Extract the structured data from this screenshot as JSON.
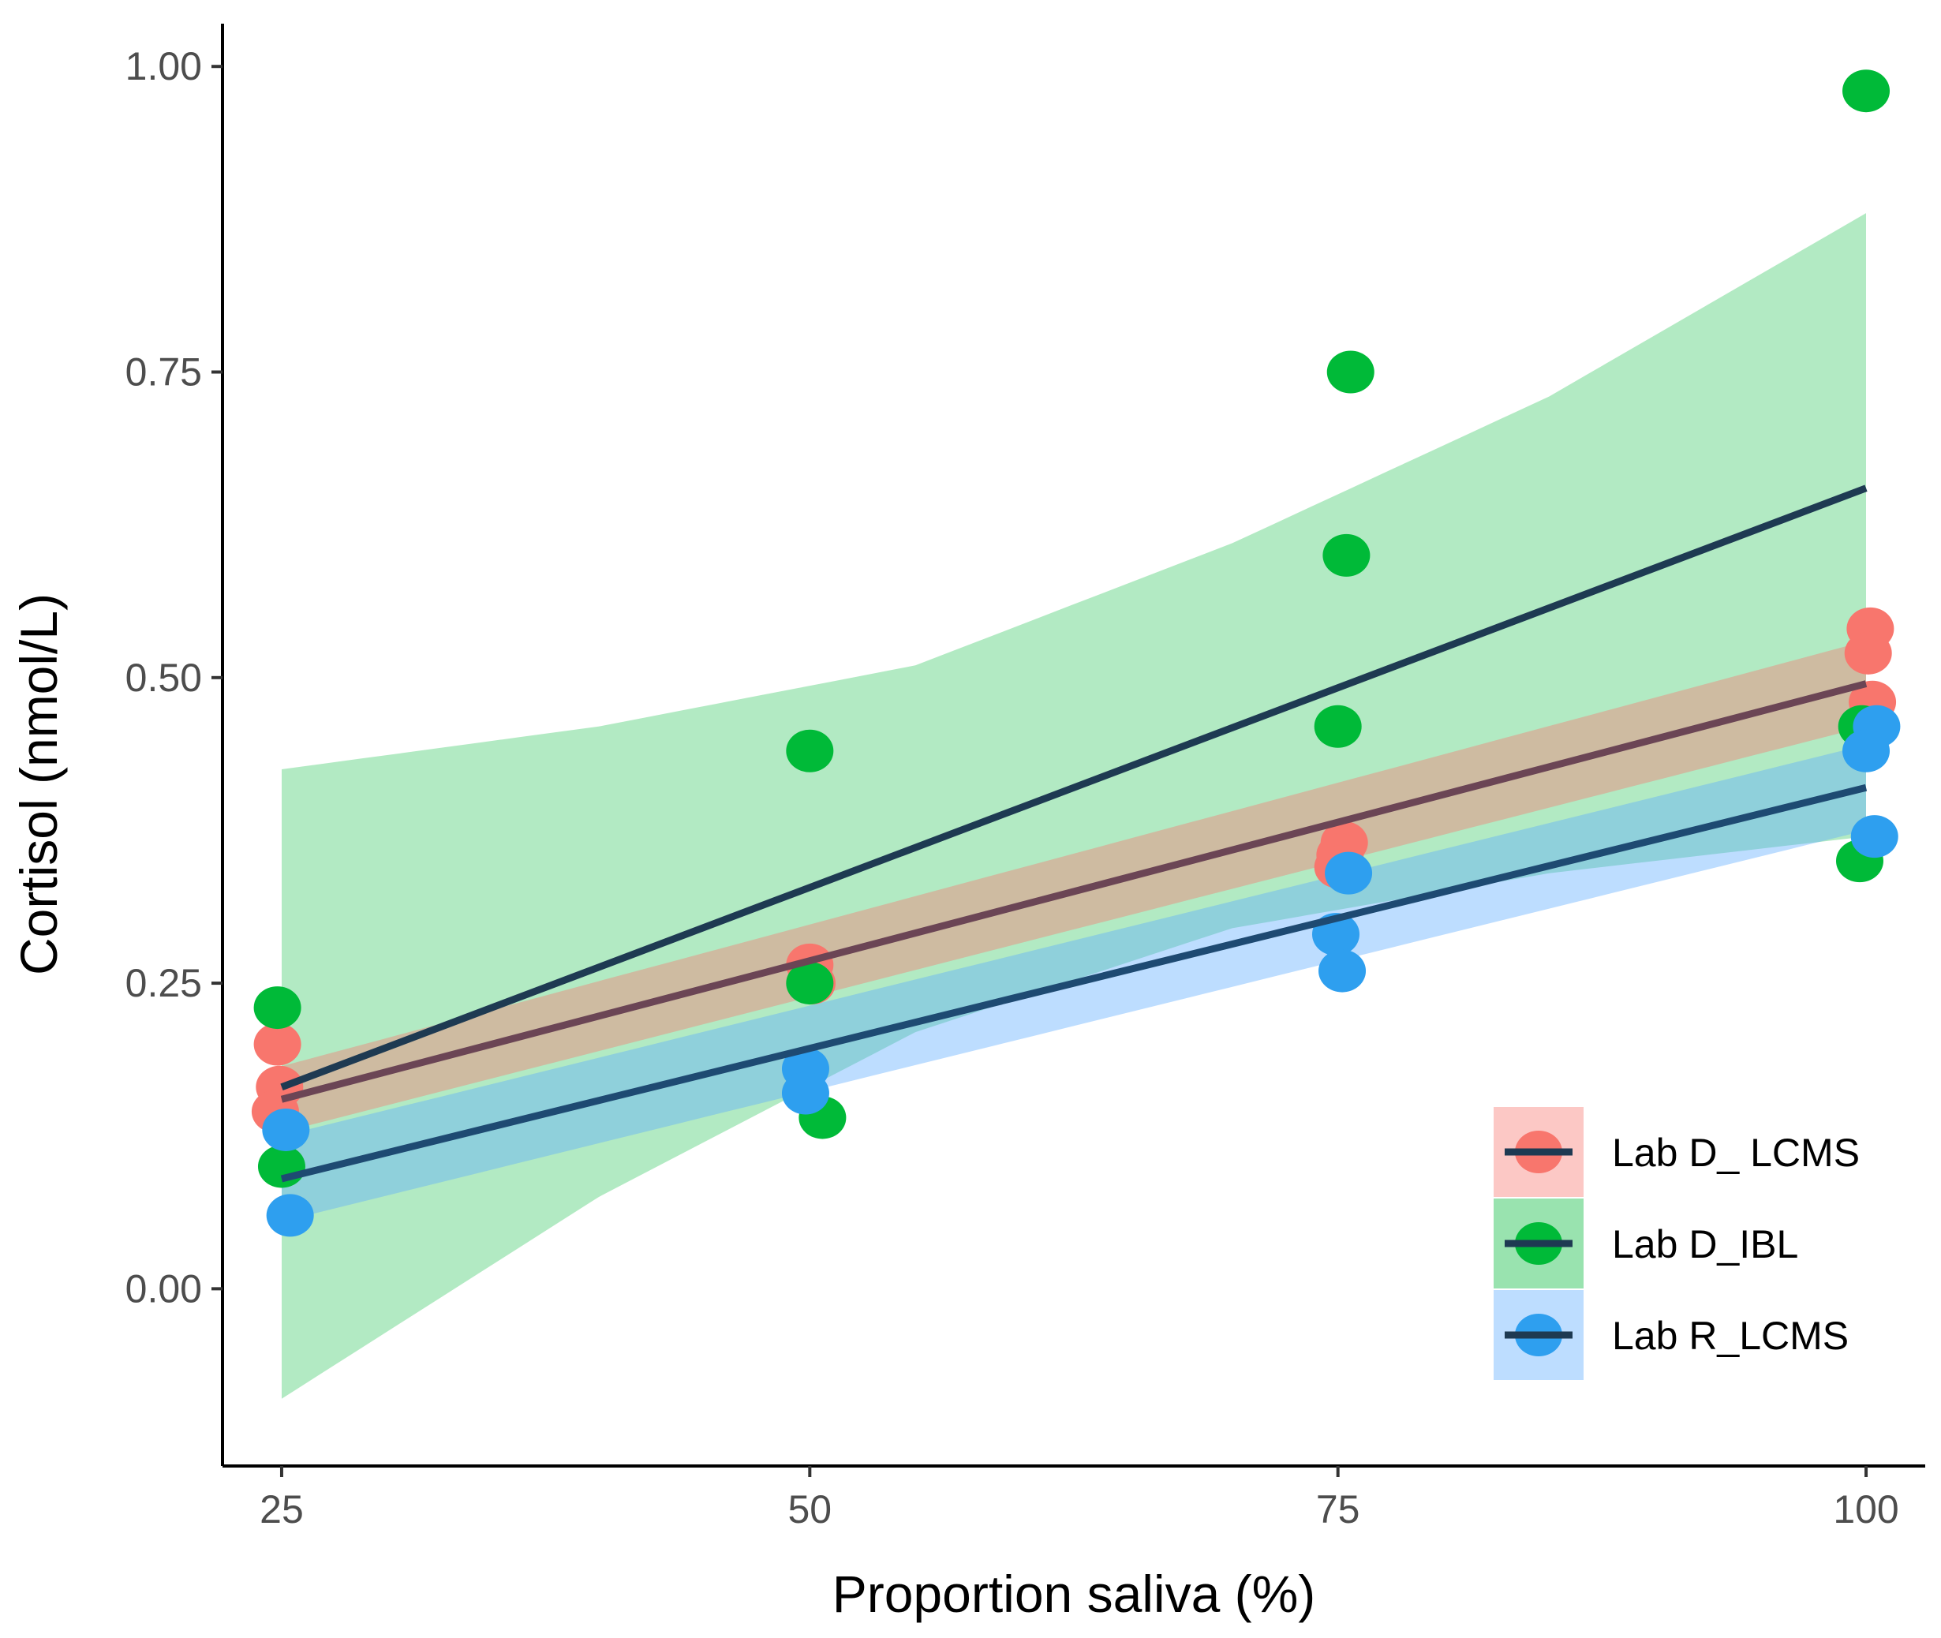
{
  "chart_data": {
    "type": "scatter",
    "title": "",
    "xlabel": "Proportion saliva (%)",
    "ylabel": "Cortisol (nmol/L)",
    "xlim": [
      22.2,
      102.8
    ],
    "ylim": [
      -0.145,
      1.035
    ],
    "x_ticks": [
      25,
      50,
      75,
      100
    ],
    "x_tick_labels": [
      "25",
      "50",
      "75",
      "100"
    ],
    "y_ticks": [
      0,
      0.25,
      0.5,
      0.75,
      1.0
    ],
    "y_tick_labels": [
      "0.00",
      "0.25",
      "0.50",
      "0.75",
      "1.00"
    ],
    "grid": false,
    "legend_position": "bottom-right",
    "fit_line_color": "#1e3a52",
    "series": [
      {
        "name": "Lab D_ LCMS",
        "color": "#F8766D",
        "ribbon_color": "#F8766D",
        "line_color": "#6b4555",
        "points": [
          {
            "x": 24.8,
            "y": 0.2
          },
          {
            "x": 24.9,
            "y": 0.165
          },
          {
            "x": 24.7,
            "y": 0.145
          },
          {
            "x": 50.0,
            "y": 0.265
          },
          {
            "x": 50.1,
            "y": 0.25
          },
          {
            "x": 75.3,
            "y": 0.365
          },
          {
            "x": 75.1,
            "y": 0.355
          },
          {
            "x": 75.0,
            "y": 0.345
          },
          {
            "x": 100.2,
            "y": 0.54
          },
          {
            "x": 100.1,
            "y": 0.52
          },
          {
            "x": 100.3,
            "y": 0.48
          }
        ],
        "fit": {
          "x": [
            25,
            100
          ],
          "y": [
            0.155,
            0.495
          ]
        },
        "ci_lower": {
          "x": [
            25,
            100
          ],
          "y": [
            0.128,
            0.46
          ]
        },
        "ci_upper": {
          "x": [
            25,
            100
          ],
          "y": [
            0.182,
            0.53
          ]
        }
      },
      {
        "name": "Lab D_IBL",
        "color": "#00BA38",
        "ribbon_color": "#00BA38",
        "line_color": "#1e3a52",
        "points": [
          {
            "x": 24.8,
            "y": 0.23
          },
          {
            "x": 25.0,
            "y": 0.1
          },
          {
            "x": 50.0,
            "y": 0.44
          },
          {
            "x": 50.0,
            "y": 0.25
          },
          {
            "x": 50.6,
            "y": 0.14
          },
          {
            "x": 75.6,
            "y": 0.75
          },
          {
            "x": 75.4,
            "y": 0.6
          },
          {
            "x": 75.0,
            "y": 0.46
          },
          {
            "x": 100.0,
            "y": 0.98
          },
          {
            "x": 99.8,
            "y": 0.46
          },
          {
            "x": 99.7,
            "y": 0.35
          }
        ],
        "fit": {
          "x": [
            25,
            100
          ],
          "y": [
            0.165,
            0.655
          ]
        },
        "ci_lower": {
          "x": [
            25,
            40,
            55,
            70,
            85,
            100
          ],
          "y": [
            -0.09,
            0.075,
            0.21,
            0.295,
            0.34,
            0.37
          ]
        },
        "ci_upper": {
          "x": [
            25,
            40,
            55,
            70,
            85,
            100
          ],
          "y": [
            0.425,
            0.46,
            0.51,
            0.61,
            0.73,
            0.88
          ]
        }
      },
      {
        "name": "Lab R_LCMS",
        "color": "#2E9FEF",
        "ribbon_color": "#5aa9ff",
        "line_color": "#1e4a72",
        "points": [
          {
            "x": 25.2,
            "y": 0.13
          },
          {
            "x": 25.4,
            "y": 0.06
          },
          {
            "x": 49.8,
            "y": 0.18
          },
          {
            "x": 49.8,
            "y": 0.16
          },
          {
            "x": 74.9,
            "y": 0.29
          },
          {
            "x": 75.2,
            "y": 0.26
          },
          {
            "x": 75.5,
            "y": 0.34
          },
          {
            "x": 100.5,
            "y": 0.46
          },
          {
            "x": 100.0,
            "y": 0.44
          },
          {
            "x": 100.4,
            "y": 0.37
          }
        ],
        "fit": {
          "x": [
            25,
            100
          ],
          "y": [
            0.09,
            0.41
          ]
        },
        "ci_lower": {
          "x": [
            25,
            100
          ],
          "y": [
            0.055,
            0.375
          ]
        },
        "ci_upper": {
          "x": [
            25,
            100
          ],
          "y": [
            0.125,
            0.445
          ]
        }
      }
    ]
  }
}
